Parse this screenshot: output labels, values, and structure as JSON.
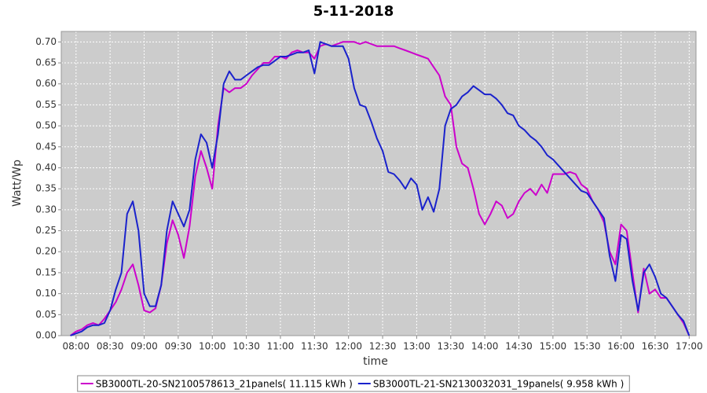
{
  "chart_data": {
    "type": "line",
    "title": "5-11-2018",
    "x_label": "time",
    "y_label": "Watt/Wp",
    "x": [
      "07:55",
      "08:00",
      "08:05",
      "08:10",
      "08:15",
      "08:20",
      "08:25",
      "08:30",
      "08:35",
      "08:40",
      "08:45",
      "08:50",
      "08:55",
      "09:00",
      "09:05",
      "09:10",
      "09:15",
      "09:20",
      "09:25",
      "09:30",
      "09:35",
      "09:40",
      "09:45",
      "09:50",
      "09:55",
      "10:00",
      "10:05",
      "10:10",
      "10:15",
      "10:20",
      "10:25",
      "10:30",
      "10:35",
      "10:40",
      "10:45",
      "10:50",
      "10:55",
      "11:00",
      "11:05",
      "11:10",
      "11:15",
      "11:20",
      "11:25",
      "11:30",
      "11:35",
      "11:40",
      "11:45",
      "11:50",
      "11:55",
      "12:00",
      "12:05",
      "12:10",
      "12:15",
      "12:20",
      "12:25",
      "12:30",
      "12:35",
      "12:40",
      "12:45",
      "12:50",
      "12:55",
      "13:00",
      "13:05",
      "13:10",
      "13:15",
      "13:20",
      "13:25",
      "13:30",
      "13:35",
      "13:40",
      "13:45",
      "13:50",
      "13:55",
      "14:00",
      "14:05",
      "14:10",
      "14:15",
      "14:20",
      "14:25",
      "14:30",
      "14:35",
      "14:40",
      "14:45",
      "14:50",
      "14:55",
      "15:00",
      "15:05",
      "15:10",
      "15:15",
      "15:20",
      "15:25",
      "15:30",
      "15:35",
      "15:40",
      "15:45",
      "15:50",
      "15:55",
      "16:00",
      "16:05",
      "16:10",
      "16:15",
      "16:20",
      "16:25",
      "16:30",
      "16:35",
      "16:40",
      "16:45",
      "16:50",
      "16:55",
      "17:00"
    ],
    "series": [
      {
        "name": "SB3000TL-20-SN2100578613_21panels( 11.115 kWh )",
        "color": "#cc00cc",
        "values": [
          0,
          0.01,
          0.015,
          0.025,
          0.03,
          0.025,
          0.04,
          0.06,
          0.08,
          0.11,
          0.15,
          0.17,
          0.12,
          0.06,
          0.055,
          0.065,
          0.12,
          0.22,
          0.275,
          0.24,
          0.185,
          0.26,
          0.38,
          0.44,
          0.4,
          0.35,
          0.5,
          0.59,
          0.58,
          0.59,
          0.59,
          0.6,
          0.62,
          0.635,
          0.65,
          0.65,
          0.665,
          0.665,
          0.66,
          0.675,
          0.68,
          0.675,
          0.675,
          0.66,
          0.69,
          0.695,
          0.69,
          0.695,
          0.7,
          0.7,
          0.7,
          0.695,
          0.7,
          0.695,
          0.69,
          0.69,
          0.69,
          0.69,
          0.685,
          0.68,
          0.675,
          0.67,
          0.665,
          0.66,
          0.64,
          0.62,
          0.57,
          0.55,
          0.45,
          0.41,
          0.4,
          0.35,
          0.29,
          0.265,
          0.29,
          0.32,
          0.31,
          0.28,
          0.29,
          0.32,
          0.34,
          0.35,
          0.335,
          0.36,
          0.34,
          0.385,
          0.385,
          0.385,
          0.39,
          0.385,
          0.36,
          0.35,
          0.32,
          0.3,
          0.27,
          0.2,
          0.17,
          0.265,
          0.25,
          0.15,
          0.055,
          0.16,
          0.1,
          0.11,
          0.09,
          0.09,
          0.07,
          0.05,
          0.03,
          0
        ]
      },
      {
        "name": "SB3000TL-21-SN2130032031_19panels( 9.958 kWh )",
        "color": "#1a22cc",
        "values": [
          0,
          0.005,
          0.01,
          0.02,
          0.025,
          0.025,
          0.03,
          0.06,
          0.11,
          0.15,
          0.29,
          0.32,
          0.25,
          0.1,
          0.07,
          0.07,
          0.12,
          0.25,
          0.32,
          0.29,
          0.26,
          0.3,
          0.42,
          0.48,
          0.46,
          0.4,
          0.48,
          0.6,
          0.63,
          0.61,
          0.61,
          0.62,
          0.63,
          0.64,
          0.645,
          0.645,
          0.655,
          0.665,
          0.665,
          0.67,
          0.675,
          0.675,
          0.68,
          0.625,
          0.7,
          0.695,
          0.69,
          0.69,
          0.69,
          0.66,
          0.59,
          0.55,
          0.545,
          0.51,
          0.47,
          0.44,
          0.39,
          0.385,
          0.37,
          0.35,
          0.375,
          0.36,
          0.3,
          0.33,
          0.295,
          0.35,
          0.5,
          0.54,
          0.55,
          0.57,
          0.58,
          0.595,
          0.585,
          0.575,
          0.575,
          0.565,
          0.55,
          0.53,
          0.525,
          0.5,
          0.49,
          0.475,
          0.465,
          0.45,
          0.43,
          0.42,
          0.405,
          0.39,
          0.375,
          0.36,
          0.345,
          0.34,
          0.32,
          0.3,
          0.28,
          0.19,
          0.13,
          0.24,
          0.23,
          0.13,
          0.06,
          0.15,
          0.17,
          0.14,
          0.1,
          0.09,
          0.07,
          0.05,
          0.035,
          0
        ]
      }
    ],
    "xlim": [
      "07:47",
      "17:06"
    ],
    "xticks": [
      "08:00",
      "08:30",
      "09:00",
      "09:30",
      "10:00",
      "10:30",
      "11:00",
      "11:30",
      "12:00",
      "12:30",
      "13:00",
      "13:30",
      "14:00",
      "14:30",
      "15:00",
      "15:30",
      "16:00",
      "16:30",
      "17:00"
    ],
    "ylim": [
      0,
      0.725
    ],
    "yticks": [
      {
        "value": 0,
        "label": "0.00"
      },
      {
        "value": 0.05,
        "label": "0.05"
      },
      {
        "value": 0.1,
        "label": "0.10"
      },
      {
        "value": 0.15,
        "label": "0.15"
      },
      {
        "value": 0.2,
        "label": "0.20"
      },
      {
        "value": 0.25,
        "label": "0.25"
      },
      {
        "value": 0.3,
        "label": "0.30"
      },
      {
        "value": 0.35,
        "label": "0.35"
      },
      {
        "value": 0.4,
        "label": "0.40"
      },
      {
        "value": 0.45,
        "label": "0.45"
      },
      {
        "value": 0.5,
        "label": "0.50"
      },
      {
        "value": 0.55,
        "label": "0.55"
      },
      {
        "value": 0.6,
        "label": "0.60"
      },
      {
        "value": 0.65,
        "label": "0.65"
      },
      {
        "value": 0.7,
        "label": "0.70"
      }
    ],
    "grid": true,
    "legend": "bottom"
  }
}
